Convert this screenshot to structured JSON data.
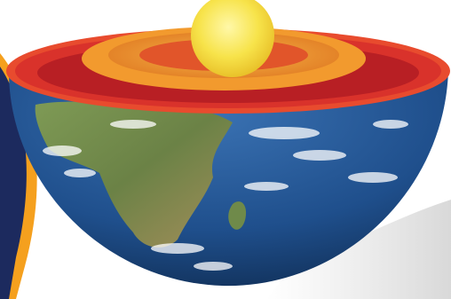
{
  "image": {
    "subject": "earth-cross-section-hemisphere",
    "colors": {
      "background": "#ffffff",
      "inner_core": "#f7e34a",
      "outer_core": "#f29a2e",
      "mantle_upper": "#d9322b",
      "mantle_deep": "#b81f24",
      "crust_rim": "#e84b2e",
      "ocean": "#1f4f8c",
      "land": "#6f8a4a",
      "left_decor_orange": "#f5a01e",
      "left_decor_navy": "#1c2a5e"
    }
  }
}
